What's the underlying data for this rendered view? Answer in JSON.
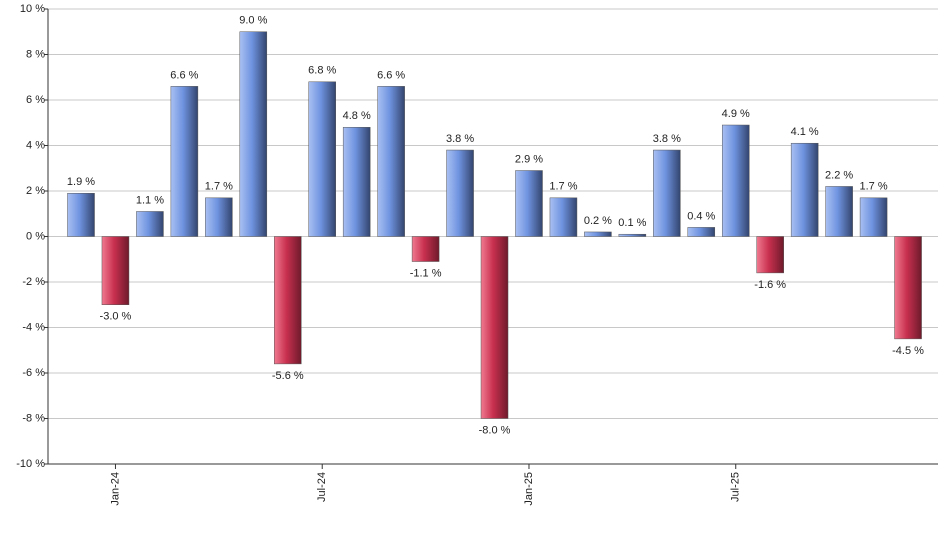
{
  "chart_data": {
    "type": "bar",
    "categories": [
      null,
      "Jan-24",
      null,
      null,
      null,
      null,
      null,
      "Jul-24",
      null,
      null,
      null,
      null,
      null,
      "Jan-25",
      null,
      null,
      null,
      null,
      null,
      "Jul-25",
      null,
      null,
      null,
      null,
      null
    ],
    "values": [
      1.9,
      -3.0,
      1.1,
      6.6,
      1.7,
      9.0,
      -5.6,
      6.8,
      4.8,
      6.6,
      -1.1,
      3.8,
      -8.0,
      2.9,
      1.7,
      0.2,
      0.1,
      3.8,
      0.4,
      4.9,
      -1.6,
      4.1,
      2.2,
      1.7,
      -4.5
    ],
    "value_labels": [
      "1.9 %",
      "-3.0 %",
      "1.1 %",
      "6.6 %",
      "1.7 %",
      "9.0 %",
      "-5.6 %",
      "6.8 %",
      "4.8 %",
      "6.6 %",
      "-1.1 %",
      "3.8 %",
      "-8.0 %",
      "2.9 %",
      "1.7 %",
      "0.2 %",
      "0.1 %",
      "3.8 %",
      "0.4 %",
      "4.9 %",
      "-1.6 %",
      "4.1 %",
      "2.2 %",
      "1.7 %",
      "-4.5 %"
    ],
    "color": "#6f93e0",
    "negative_color": "#c8304f",
    "ylim": [
      -10,
      10
    ],
    "yticks": [
      {
        "value": -10,
        "label": "-10 %"
      },
      {
        "value": -8,
        "label": "-8 %"
      },
      {
        "value": -6,
        "label": "-6 %"
      },
      {
        "value": -4,
        "label": "-4 %"
      },
      {
        "value": -2,
        "label": "-2 %"
      },
      {
        "value": 0,
        "label": "0 %"
      },
      {
        "value": 2,
        "label": "2 %"
      },
      {
        "value": 4,
        "label": "4 %"
      },
      {
        "value": 6,
        "label": "6 %"
      },
      {
        "value": 8,
        "label": "8 %"
      },
      {
        "value": 10,
        "label": "10 %"
      }
    ],
    "grid": true
  }
}
